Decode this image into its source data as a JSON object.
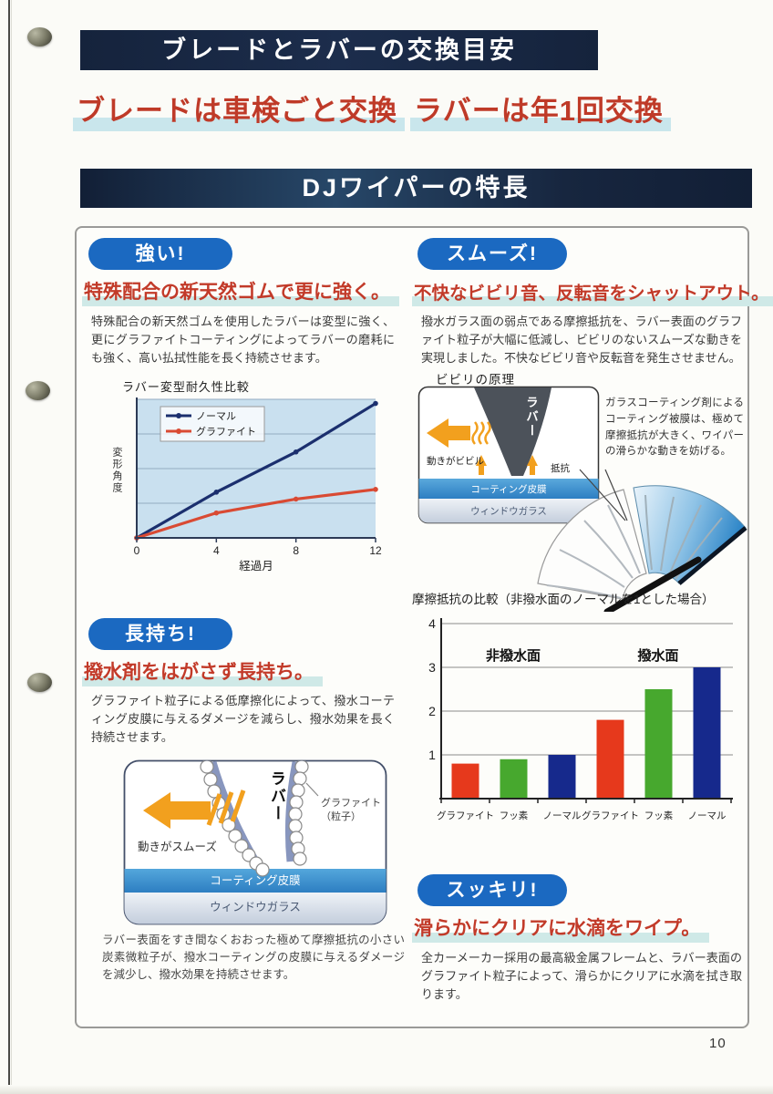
{
  "page": {
    "number": "10"
  },
  "header": {
    "title_banner": "ブレードとラバーの交換目安",
    "replace_blade": "ブレードは車検ごと交換",
    "replace_rubber": "ラバーは年1回交換",
    "features_banner": "DJワイパーの特長"
  },
  "colors": {
    "banner_navy": "#15233c",
    "badge_blue": "#1b69c1",
    "heading_red": "#c23a29",
    "highlight_cyan": "#c9e6ec",
    "arrow_orange": "#f2a01e",
    "bar_red": "#e6391c",
    "bar_green": "#47a82e",
    "bar_blue": "#16298c"
  },
  "sections": {
    "strong": {
      "badge": "強い!",
      "heading": "特殊配合の新天然ゴムで更に強く。",
      "body": "特殊配合の新天然ゴムを使用したラバーは変型に強く、更にグラファイトコーティングによってラバーの磨耗にも強く、高い払拭性能を長く持続させます。"
    },
    "smooth": {
      "badge": "スムーズ!",
      "heading": "不快なビビリ音、反転音をシャットアウト。",
      "body": "撥水ガラス面の弱点である摩擦抵抗を、ラバー表面のグラファイト粒子が大幅に低減し、ビビリのないスムーズな動きを実現しました。不快なビビリ音や反転音を発生させません。"
    },
    "durable": {
      "badge": "長持ち!",
      "heading": "撥水剤をはがさず長持ち。",
      "body": "グラファイト粒子による低摩擦化によって、撥水コーティング皮膜に与えるダメージを減らし、撥水効果を長く持続させます。",
      "caption": "ラバー表面をすき間なくおおった極めて摩擦抵抗の小さい炭素微粒子が、撥水コーティングの皮膜に与えるダメージを減少し、撥水効果を持続させます。"
    },
    "clean": {
      "badge": "スッキリ!",
      "heading": "滑らかにクリアに水滴をワイプ。",
      "body": "全カーメーカー採用の最高級金属フレームと、ラバー表面のグラファイト粒子によって、滑らかにクリアに水滴を拭き取ります。"
    }
  },
  "diagrams": {
    "bibiri": {
      "title": "ビビリの原理",
      "rubber_label": "ラバー",
      "movement_label": "動きがビビル",
      "resistance_label": "抵抗",
      "coating_label": "コーティング皮膜",
      "glass_label": "ウィンドウガラス",
      "note": "ガラスコーティング剤によるコーティング被膜は、極めて摩擦抵抗が大きく、ワイパーの滑らかな動きを妨げる。"
    },
    "smooth_motion": {
      "rubber_label": "ラバー",
      "graphite_label_1": "グラファイト",
      "graphite_label_2": "（粒子）",
      "movement_label": "動きがスムーズ",
      "coating_label": "コーティング皮膜",
      "glass_label": "ウィンドウガラス"
    }
  },
  "chart_data": [
    {
      "type": "line",
      "title": "ラバー変型耐久性比較",
      "xlabel": "経過月",
      "ylabel": "変形角度",
      "x": [
        0,
        4,
        8,
        12
      ],
      "xlim": [
        0,
        12
      ],
      "ylim": [
        0,
        100
      ],
      "y_units": "relative (no numeric ticks shown)",
      "grid": true,
      "legend_position": "top-left",
      "series": [
        {
          "name": "ノーマル",
          "color": "#1b2f6e",
          "values": [
            0,
            33,
            62,
            97
          ]
        },
        {
          "name": "グラファイト",
          "color": "#d94a33",
          "values": [
            0,
            18,
            28,
            35
          ]
        }
      ]
    },
    {
      "type": "bar",
      "title": "摩擦抵抗の比較（非撥水面のノーマルを1とした場合）",
      "group_labels": [
        "非撥水面",
        "撥水面"
      ],
      "categories": [
        "グラファイト",
        "フッ素",
        "ノーマル",
        "グラファイト",
        "フッ素",
        "ノーマル"
      ],
      "values": [
        0.8,
        0.9,
        1.0,
        1.8,
        2.5,
        3.0
      ],
      "colors": [
        "#e6391c",
        "#47a82e",
        "#16298c",
        "#e6391c",
        "#47a82e",
        "#16298c"
      ],
      "ylim": [
        0,
        4
      ],
      "yticks": [
        1,
        2,
        3,
        4
      ],
      "grid": true
    }
  ]
}
